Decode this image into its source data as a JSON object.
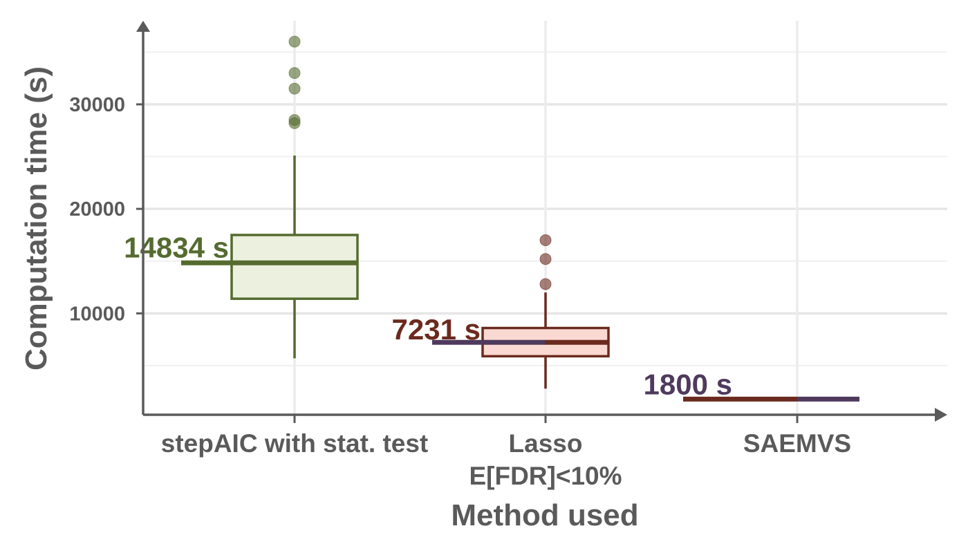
{
  "chart_data": {
    "type": "box",
    "xlabel": "Method used",
    "ylabel": "Computation time (s)",
    "yticks": [
      10000,
      20000,
      30000
    ],
    "ylim": [
      300,
      38000
    ],
    "grid": true,
    "categories": [
      {
        "label_lines": [
          "stepAIC with stat. test"
        ],
        "color": "#556b2f",
        "fill": "#ecf0de",
        "box": {
          "q1": 11400,
          "median": 14834,
          "q3": 17500,
          "whisker_low": 5700,
          "whisker_high": 25100
        },
        "outliers": [
          36000,
          33000,
          31500,
          28500,
          28200
        ],
        "annotation": "14834 s",
        "line_value": 14834
      },
      {
        "label_lines": [
          "Lasso",
          "E[FDR]<10%"
        ],
        "color": "#6b2a1e",
        "fill": "#fad9d3",
        "box": {
          "q1": 5900,
          "median": 7231,
          "q3": 8600,
          "whisker_low": 2800,
          "whisker_high": 12000
        },
        "outliers": [
          17000,
          15200,
          12800
        ],
        "annotation": "7231 s",
        "line_value": 7231
      },
      {
        "label_lines": [
          "SAEMVS"
        ],
        "color": "#4f3a5e",
        "fill": "#4f3a5e",
        "box": null,
        "outliers": [],
        "annotation": "1800 s",
        "line_value": 1800
      }
    ]
  }
}
